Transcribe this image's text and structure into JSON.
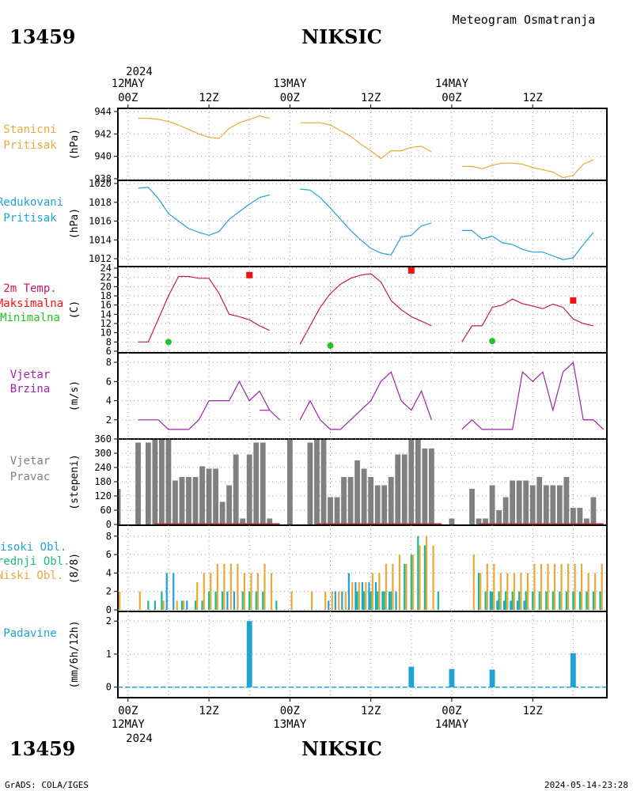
{
  "header": {
    "station_id": "13459",
    "station_name": "NIKSIC",
    "product": "Meteogram Osmatranja",
    "year": "2024"
  },
  "footer": {
    "credit": "GrADS: COLA/IGES",
    "timestamp": "2024-05-14-23:28"
  },
  "time_axis": {
    "day_labels": [
      "12MAY",
      "13MAY",
      "14MAY"
    ],
    "hour_labels": [
      "00Z",
      "12Z",
      "00Z",
      "12Z",
      "00Z",
      "12Z"
    ],
    "hour_positions": [
      0,
      12,
      24,
      36,
      48,
      60
    ],
    "x_unit": "hours since 12MAY 00Z",
    "range": [
      -1.5,
      71
    ]
  },
  "chart_data": [
    {
      "type": "line",
      "labels": [
        "Stanicni",
        "Pritisak"
      ],
      "unit": "(hPa)",
      "ylim": [
        938,
        944
      ],
      "yticks": [
        938,
        940,
        942,
        944
      ],
      "color": "#e8a93a",
      "series": [
        {
          "x": [
            1.5,
            3,
            4.5,
            6,
            7.5,
            9,
            10.5,
            12,
            13.5,
            15,
            16.5,
            18,
            19.5,
            21
          ],
          "y": [
            943.4,
            943.4,
            943.3,
            943.1,
            942.8,
            942.4,
            942.0,
            941.7,
            941.6,
            942.5,
            943.0,
            943.3,
            943.6,
            943.4
          ]
        },
        {
          "x": [
            25.5,
            27,
            28.5,
            30,
            31.5,
            33,
            34.5,
            36,
            37.5,
            39,
            40.5,
            42,
            43.5,
            45
          ],
          "y": [
            943.0,
            943.0,
            943.0,
            942.8,
            942.3,
            941.8,
            941.1,
            940.5,
            939.8,
            940.5,
            940.5,
            940.8,
            940.9,
            940.4
          ]
        },
        {
          "x": [
            49.5,
            51,
            52.5,
            54,
            55.5,
            57,
            58.5,
            60,
            61.5,
            63,
            64.5,
            66,
            67.5,
            69
          ],
          "y": [
            939.1,
            939.1,
            938.9,
            939.2,
            939.4,
            939.4,
            939.3,
            939.0,
            938.8,
            938.6,
            938.1,
            938.3,
            939.3,
            939.7
          ]
        }
      ]
    },
    {
      "type": "line",
      "labels": [
        "Redukovani",
        "Pritisak"
      ],
      "unit": "(hPa)",
      "ylim": [
        1011.5,
        1020
      ],
      "yticks": [
        1012,
        1014,
        1016,
        1018,
        1020
      ],
      "color": "#1fa3d6",
      "series": [
        {
          "x": [
            1.5,
            3,
            4.5,
            6,
            7.5,
            9,
            10.5,
            12,
            13.5,
            15,
            16.5,
            18,
            19.5,
            21
          ],
          "y": [
            1019.5,
            1019.6,
            1018.4,
            1016.8,
            1016.0,
            1015.2,
            1014.8,
            1014.5,
            1014.9,
            1016.2,
            1017.0,
            1017.8,
            1018.5,
            1018.8
          ]
        },
        {
          "x": [
            25.5,
            27,
            28.5,
            30,
            31.5,
            33,
            34.5,
            36,
            37.5,
            39,
            40.5,
            42,
            43.5,
            45
          ],
          "y": [
            1019.4,
            1019.3,
            1018.5,
            1017.4,
            1016.2,
            1015.0,
            1014.0,
            1013.1,
            1012.6,
            1012.4,
            1014.3,
            1014.5,
            1015.5,
            1015.8
          ]
        },
        {
          "x": [
            49.5,
            51,
            52.5,
            54,
            55.5,
            57,
            58.5,
            60,
            61.5,
            63,
            64.5,
            66,
            67.5,
            69
          ],
          "y": [
            1015.0,
            1015.0,
            1014.1,
            1014.4,
            1013.7,
            1013.5,
            1013.0,
            1012.7,
            1012.7,
            1012.3,
            1011.9,
            1012.1,
            1013.5,
            1014.8
          ]
        }
      ]
    },
    {
      "type": "line",
      "labels": [
        "2m Temp.",
        "Maksimalna",
        "Minimalna"
      ],
      "label_colors": [
        "#c8175c",
        "#ee1111",
        "#22c322"
      ],
      "unit": "(C)",
      "ylim": [
        6,
        24
      ],
      "yticks": [
        6,
        8,
        10,
        12,
        14,
        16,
        18,
        20,
        22,
        24
      ],
      "color": "#c8175c",
      "series": [
        {
          "x": [
            1.5,
            3,
            4.5,
            6,
            7.5,
            9,
            10.5,
            12,
            13.5,
            15,
            16.5,
            18,
            19.5,
            21
          ],
          "y": [
            8,
            8,
            13,
            18,
            22.2,
            22.2,
            21.8,
            21.8,
            18.5,
            14.0,
            13.5,
            12.8,
            11.5,
            10.5
          ]
        },
        {
          "x": [
            25.5,
            27,
            28.5,
            30,
            31.5,
            33,
            34.5,
            36,
            37.5,
            39,
            40.5,
            42,
            43.5,
            45
          ],
          "y": [
            7.5,
            11.5,
            15.5,
            18.5,
            20.5,
            21.8,
            22.5,
            22.8,
            21.0,
            17.0,
            15.0,
            13.5,
            12.5,
            11.5
          ]
        },
        {
          "x": [
            49.5,
            51,
            52.5,
            54,
            55.5,
            57,
            58.5,
            60,
            61.5,
            63,
            64.5,
            66,
            67.5,
            69
          ],
          "y": [
            8,
            11.5,
            11.5,
            15.5,
            16.0,
            17.3,
            16.3,
            15.8,
            15.2,
            16.2,
            15.5,
            13.0,
            12.0,
            11.5
          ]
        }
      ],
      "markers": [
        {
          "name": "Maksimalna",
          "shape": "square",
          "color": "#ee1111",
          "points": [
            {
              "x": 18,
              "y": 22.5
            },
            {
              "x": 42,
              "y": 23.5
            },
            {
              "x": 66,
              "y": 17
            }
          ]
        },
        {
          "name": "Minimalna",
          "shape": "circle",
          "color": "#22c322",
          "points": [
            {
              "x": 6,
              "y": 8
            },
            {
              "x": 30,
              "y": 7.2
            },
            {
              "x": 54,
              "y": 8.2
            }
          ]
        }
      ]
    },
    {
      "type": "line",
      "labels": [
        "Vjetar",
        "Brzina"
      ],
      "unit": "(m/s)",
      "ylim": [
        0.5,
        8.5
      ],
      "yticks": [
        2,
        4,
        6,
        8
      ],
      "color": "#a020a8",
      "series": [
        {
          "x": [
            1.5,
            3,
            4.5,
            6,
            7.5,
            9,
            10.5,
            12,
            13.5,
            15,
            16.5,
            18,
            19.5,
            21
          ],
          "y": [
            2,
            2,
            2,
            1,
            1,
            1,
            2,
            4,
            4,
            4,
            6,
            4,
            5,
            3
          ]
        },
        {
          "x": [
            19.5,
            21,
            22.5
          ],
          "y": [
            3,
            3,
            2
          ]
        },
        {
          "x": [
            25.5,
            27,
            28.5,
            30,
            31.5,
            33,
            34.5,
            36,
            37.5,
            39,
            40.5,
            42,
            43.5,
            45
          ],
          "y": [
            2,
            4,
            2,
            1,
            1,
            2,
            3,
            4,
            6,
            7,
            4,
            3,
            5,
            2
          ]
        },
        {
          "x": [
            49.5,
            51,
            52.5,
            54,
            55.5,
            57,
            58.5,
            60,
            61.5,
            63,
            64.5,
            66,
            67.5,
            69
          ],
          "y": [
            1,
            2,
            1,
            1,
            1,
            1,
            7,
            6,
            7,
            3,
            7,
            8,
            2,
            2
          ]
        },
        {
          "x": [
            67.5,
            69,
            70.5
          ],
          "y": [
            2,
            2,
            1
          ]
        }
      ]
    },
    {
      "type": "bar",
      "labels": [
        "Vjetar",
        "Pravac"
      ],
      "unit": "(stepeni)",
      "ylim": [
        0,
        360
      ],
      "yticks": [
        0,
        60,
        120,
        180,
        240,
        300,
        360
      ],
      "color": "#808080",
      "baseline_color": "#c03030",
      "x": [
        -1.5,
        1.5,
        3,
        4,
        5,
        6,
        7,
        8,
        9,
        10,
        11,
        12,
        13,
        14,
        15,
        16,
        17,
        18,
        19,
        20,
        21,
        22,
        24,
        27,
        28,
        29,
        30,
        31,
        32,
        33,
        34,
        35,
        36,
        37,
        38,
        39,
        40,
        41,
        42,
        43,
        44,
        45,
        48,
        51,
        52,
        53,
        54,
        55,
        56,
        57,
        58,
        59,
        60,
        61,
        62,
        63,
        64,
        65,
        66,
        67,
        68,
        69,
        70
      ],
      "values": [
        150,
        345,
        345,
        360,
        360,
        360,
        185,
        200,
        200,
        200,
        245,
        235,
        235,
        95,
        165,
        295,
        25,
        295,
        345,
        345,
        25,
        0,
        360,
        345,
        360,
        360,
        115,
        115,
        200,
        200,
        270,
        235,
        200,
        165,
        165,
        200,
        295,
        295,
        360,
        360,
        320,
        320,
        25,
        150,
        25,
        25,
        165,
        60,
        115,
        185,
        185,
        185,
        165,
        200,
        165,
        165,
        165,
        200,
        70,
        70,
        25,
        115,
        0
      ]
    },
    {
      "type": "bar",
      "labels": [
        "Visoki Obl.",
        "Srednji Obl.",
        "Niski Obl."
      ],
      "label_colors": [
        "#1fa3d6",
        "#1abc8c",
        "#e8a93a"
      ],
      "unit": "(8/8)",
      "ylim": [
        0,
        8.5
      ],
      "yticks": [
        0,
        2,
        4,
        6,
        8
      ],
      "series": [
        {
          "name": "Visoki Obl.",
          "color": "#1fa3d6",
          "x": [
            6,
            7,
            9,
            15,
            16,
            30,
            31,
            32,
            33,
            34,
            35,
            36,
            37,
            38,
            39,
            40,
            54,
            55,
            56,
            57,
            58,
            59
          ],
          "values": [
            4,
            4,
            1,
            2,
            2,
            1,
            2,
            2,
            4,
            3,
            3,
            3,
            3,
            2,
            2,
            2,
            2,
            1,
            1,
            1,
            1,
            1
          ]
        },
        {
          "name": "Srednji Obl.",
          "color": "#1abc8c",
          "x": [
            3,
            4,
            5,
            8,
            10,
            11,
            12,
            13,
            14,
            17,
            18,
            19,
            20,
            22,
            34,
            35,
            36,
            37,
            38,
            39,
            41,
            42,
            43,
            44,
            46,
            52,
            53,
            54,
            55,
            56,
            57,
            58,
            59,
            60,
            61,
            62,
            63,
            64,
            65,
            66,
            67,
            68,
            69,
            70
          ],
          "values": [
            1,
            1,
            2,
            1,
            1,
            1,
            2,
            2,
            2,
            2,
            2,
            2,
            2,
            1,
            2,
            2,
            2,
            2,
            2,
            2,
            5,
            6,
            8,
            7,
            2,
            4,
            2,
            2,
            2,
            2,
            2,
            2,
            2,
            2,
            2,
            2,
            2,
            2,
            2,
            2,
            2,
            2,
            2,
            2
          ]
        },
        {
          "name": "Niski Obl.",
          "color": "#e8a93a",
          "x": [
            -1.5,
            1.5,
            5,
            7,
            8,
            10,
            11,
            12,
            13,
            14,
            15,
            16,
            17,
            18,
            19,
            20,
            21,
            24,
            27,
            29,
            30,
            31,
            32,
            33,
            34,
            35,
            36,
            37,
            38,
            39,
            40,
            41,
            42,
            43,
            44,
            45,
            51,
            52,
            53,
            54,
            55,
            56,
            57,
            58,
            59,
            60,
            61,
            62,
            63,
            64,
            65,
            66,
            67,
            68,
            69,
            70
          ],
          "values": [
            2,
            2,
            1,
            1,
            1,
            3,
            4,
            4,
            5,
            5,
            5,
            5,
            4,
            4,
            4,
            5,
            4,
            2,
            2,
            2,
            2,
            2,
            2,
            3,
            3,
            3,
            4,
            4,
            5,
            5,
            6,
            5,
            6,
            7,
            8,
            7,
            6,
            4,
            5,
            5,
            4,
            4,
            4,
            4,
            4,
            5,
            5,
            5,
            5,
            5,
            5,
            5,
            5,
            4,
            4,
            5
          ]
        }
      ]
    },
    {
      "type": "bar",
      "labels": [
        "Padavine"
      ],
      "label_colors": [
        "#1fa3d6"
      ],
      "unit": "(mm/6h/12h)",
      "ylim": [
        -0.15,
        2.1
      ],
      "yticks": [
        0,
        1,
        2
      ],
      "color": "#1fa3d6",
      "x": [
        18,
        42,
        48,
        54,
        66
      ],
      "values": [
        2.0,
        0.62,
        0.55,
        0.53,
        1.03
      ]
    }
  ]
}
